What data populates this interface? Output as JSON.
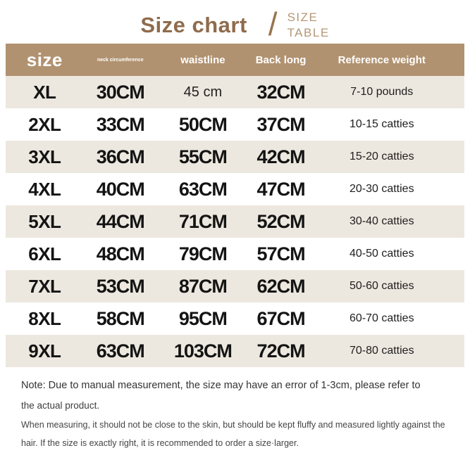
{
  "page": {
    "title": "Size chart",
    "slash": "/",
    "subtitle_line1": "SIZE",
    "subtitle_line2": "TABLE"
  },
  "table": {
    "headers": [
      "size",
      "neck circumference",
      "waistline",
      "Back long",
      "Reference weight"
    ],
    "rows": [
      {
        "size": "XL",
        "neck": "30CM",
        "waist": "45 cm",
        "back": "32CM",
        "weight": "7-10 pounds"
      },
      {
        "size": "2XL",
        "neck": "33CM",
        "waist": "50CM",
        "back": "37CM",
        "weight": "10-15 catties"
      },
      {
        "size": "3XL",
        "neck": "36CM",
        "waist": "55CM",
        "back": "42CM",
        "weight": "15-20 catties"
      },
      {
        "size": "4XL",
        "neck": "40CM",
        "waist": "63CM",
        "back": "47CM",
        "weight": "20-30 catties"
      },
      {
        "size": "5XL",
        "neck": "44CM",
        "waist": "71CM",
        "back": "52CM",
        "weight": "30-40 catties"
      },
      {
        "size": "6XL",
        "neck": "48CM",
        "waist": "79CM",
        "back": "57CM",
        "weight": "40-50 catties"
      },
      {
        "size": "7XL",
        "neck": "53CM",
        "waist": "87CM",
        "back": "62CM",
        "weight": "50-60 catties"
      },
      {
        "size": "8XL",
        "neck": "58CM",
        "waist": "95CM",
        "back": "67CM",
        "weight": "60-70 catties"
      },
      {
        "size": "9XL",
        "neck": "63CM",
        "waist": "103CM",
        "back": "72CM",
        "weight": "70-80 catties"
      }
    ]
  },
  "notes": {
    "line1": "Note: Due to manual measurement, the size may have an error of 1-3cm, please refer to",
    "line2": "the actual product.",
    "line3": "When measuring, it should not be close to the skin, but should be kept fluffy and measured lightly against the",
    "line4": "hair. If the size is exactly right, it is recommended to order a size·larger."
  },
  "colors": {
    "header_background": "#b19270",
    "stripe_background": "#ede8df",
    "title_brown": "#8f6b4c",
    "subtitle_tan": "#b49776",
    "cell_text": "#141414",
    "note_text": "#3d3d3d"
  }
}
